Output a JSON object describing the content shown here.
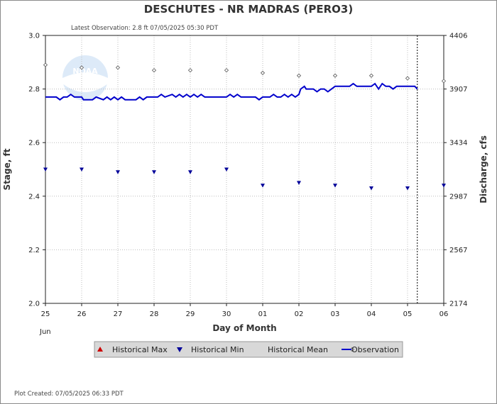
{
  "header": {
    "title": "DESCHUTES - NR MADRAS  (PERO3)",
    "latest_observation": "Latest Observation: 2.8 ft 07/05/2025 05:30 PDT",
    "plot_created": "Plot Created: 07/05/2025 06:33 PDT"
  },
  "chart_data": {
    "type": "line",
    "xlabel": "Day of Month",
    "x_month_label": "Jun",
    "ylabel_left": "Stage, ft",
    "ylabel_right": "Discharge, cfs",
    "x_ticks": [
      "25",
      "26",
      "27",
      "28",
      "29",
      "30",
      "01",
      "02",
      "03",
      "04",
      "05",
      "06"
    ],
    "xlim_days": [
      0,
      11
    ],
    "ylim": [
      2.0,
      3.0
    ],
    "y_ticks": [
      "2.0",
      "2.2",
      "2.4",
      "2.6",
      "2.8",
      "3.0"
    ],
    "y_ticks_right": [
      "2174",
      "2567",
      "2987",
      "3434",
      "3907",
      "4406"
    ],
    "grid": true,
    "observation_end_day": 10.27,
    "series": [
      {
        "name": "Historical Max",
        "color": "#cc0000",
        "marker": "triangle-up",
        "points": []
      },
      {
        "name": "Historical Min",
        "color": "#000099",
        "marker": "triangle-down",
        "points": [
          [
            0,
            2.5
          ],
          [
            1,
            2.5
          ],
          [
            2,
            2.49
          ],
          [
            3,
            2.49
          ],
          [
            4,
            2.49
          ],
          [
            5,
            2.5
          ],
          [
            6,
            2.44
          ],
          [
            7,
            2.45
          ],
          [
            8,
            2.44
          ],
          [
            9,
            2.43
          ],
          [
            10,
            2.43
          ],
          [
            11,
            2.44
          ]
        ]
      },
      {
        "name": "Historical Mean",
        "color": "#555555",
        "marker": "diamond",
        "points": [
          [
            0,
            2.89
          ],
          [
            1,
            2.88
          ],
          [
            2,
            2.88
          ],
          [
            3,
            2.87
          ],
          [
            4,
            2.87
          ],
          [
            5,
            2.87
          ],
          [
            6,
            2.86
          ],
          [
            7,
            2.85
          ],
          [
            8,
            2.85
          ],
          [
            9,
            2.85
          ],
          [
            10,
            2.84
          ],
          [
            11,
            2.83
          ]
        ]
      },
      {
        "name": "Observation",
        "color": "#0000cc",
        "marker": "line",
        "points": [
          [
            0,
            2.77
          ],
          [
            0.3,
            2.77
          ],
          [
            0.4,
            2.76
          ],
          [
            0.5,
            2.77
          ],
          [
            0.6,
            2.77
          ],
          [
            0.7,
            2.78
          ],
          [
            0.8,
            2.77
          ],
          [
            1.0,
            2.77
          ],
          [
            1.05,
            2.76
          ],
          [
            1.3,
            2.76
          ],
          [
            1.4,
            2.77
          ],
          [
            1.6,
            2.76
          ],
          [
            1.7,
            2.77
          ],
          [
            1.8,
            2.76
          ],
          [
            1.9,
            2.77
          ],
          [
            2.0,
            2.76
          ],
          [
            2.1,
            2.77
          ],
          [
            2.2,
            2.76
          ],
          [
            2.5,
            2.76
          ],
          [
            2.6,
            2.77
          ],
          [
            2.7,
            2.76
          ],
          [
            2.8,
            2.77
          ],
          [
            2.9,
            2.77
          ],
          [
            3.0,
            2.77
          ],
          [
            3.1,
            2.77
          ],
          [
            3.2,
            2.78
          ],
          [
            3.3,
            2.77
          ],
          [
            3.5,
            2.78
          ],
          [
            3.6,
            2.77
          ],
          [
            3.7,
            2.78
          ],
          [
            3.8,
            2.77
          ],
          [
            3.9,
            2.78
          ],
          [
            4.0,
            2.77
          ],
          [
            4.1,
            2.78
          ],
          [
            4.2,
            2.77
          ],
          [
            4.3,
            2.78
          ],
          [
            4.4,
            2.77
          ],
          [
            4.6,
            2.77
          ],
          [
            4.8,
            2.77
          ],
          [
            5.0,
            2.77
          ],
          [
            5.1,
            2.78
          ],
          [
            5.2,
            2.77
          ],
          [
            5.3,
            2.78
          ],
          [
            5.4,
            2.77
          ],
          [
            5.6,
            2.77
          ],
          [
            5.8,
            2.77
          ],
          [
            5.9,
            2.76
          ],
          [
            6.0,
            2.77
          ],
          [
            6.2,
            2.77
          ],
          [
            6.3,
            2.78
          ],
          [
            6.4,
            2.77
          ],
          [
            6.5,
            2.77
          ],
          [
            6.6,
            2.78
          ],
          [
            6.7,
            2.77
          ],
          [
            6.8,
            2.78
          ],
          [
            6.9,
            2.77
          ],
          [
            7.0,
            2.78
          ],
          [
            7.05,
            2.8
          ],
          [
            7.15,
            2.81
          ],
          [
            7.2,
            2.8
          ],
          [
            7.4,
            2.8
          ],
          [
            7.5,
            2.79
          ],
          [
            7.6,
            2.8
          ],
          [
            7.7,
            2.8
          ],
          [
            7.8,
            2.79
          ],
          [
            7.9,
            2.8
          ],
          [
            8.0,
            2.81
          ],
          [
            8.2,
            2.81
          ],
          [
            8.4,
            2.81
          ],
          [
            8.5,
            2.82
          ],
          [
            8.6,
            2.81
          ],
          [
            8.8,
            2.81
          ],
          [
            9.0,
            2.81
          ],
          [
            9.1,
            2.82
          ],
          [
            9.2,
            2.8
          ],
          [
            9.3,
            2.82
          ],
          [
            9.4,
            2.81
          ],
          [
            9.5,
            2.81
          ],
          [
            9.6,
            2.8
          ],
          [
            9.7,
            2.81
          ],
          [
            9.8,
            2.81
          ],
          [
            10.0,
            2.81
          ],
          [
            10.2,
            2.81
          ],
          [
            10.27,
            2.8
          ]
        ]
      }
    ],
    "legend_position": "bottom"
  }
}
